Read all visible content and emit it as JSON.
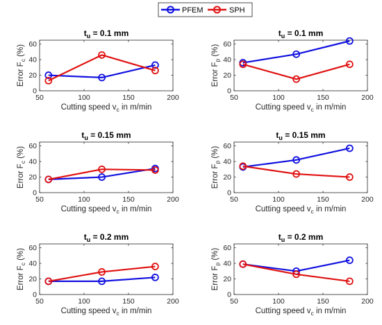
{
  "figure": {
    "legend": [
      {
        "name": "PFEM",
        "color": "#1010e0"
      },
      {
        "name": "SPH",
        "color": "#e01010"
      }
    ]
  },
  "chart_data": [
    {
      "type": "line",
      "title_main": "t",
      "title_sub": "u",
      "title_rest": " = 0.1 mm",
      "xlabel_main": "Cutting speed v",
      "xlabel_sub": "c",
      "xlabel_rest": " in m/min",
      "ylabel_main": "Error F",
      "ylabel_sub": "c",
      "ylabel_rest": " (%)",
      "xlim": [
        50,
        200
      ],
      "ylim": [
        0,
        65
      ],
      "xticks": [
        50,
        100,
        150,
        200
      ],
      "yticks": [
        0,
        20,
        40,
        60
      ],
      "x": [
        60,
        120,
        180
      ],
      "series": [
        {
          "name": "PFEM",
          "color": "#1010e0",
          "values": [
            20,
            17,
            33
          ]
        },
        {
          "name": "SPH",
          "color": "#e01010",
          "values": [
            13,
            46,
            26
          ]
        }
      ]
    },
    {
      "type": "line",
      "title_main": "t",
      "title_sub": "u",
      "title_rest": " = 0.1 mm",
      "xlabel_main": "Cutting speed v",
      "xlabel_sub": "c",
      "xlabel_rest": " in m/min",
      "ylabel_main": "Error F",
      "ylabel_sub": "p",
      "ylabel_rest": " (%)",
      "xlim": [
        50,
        200
      ],
      "ylim": [
        0,
        65
      ],
      "xticks": [
        50,
        100,
        150,
        200
      ],
      "yticks": [
        0,
        20,
        40,
        60
      ],
      "x": [
        60,
        120,
        180
      ],
      "series": [
        {
          "name": "PFEM",
          "color": "#1010e0",
          "values": [
            36,
            47,
            64
          ]
        },
        {
          "name": "SPH",
          "color": "#e01010",
          "values": [
            34,
            15,
            34
          ]
        }
      ]
    },
    {
      "type": "line",
      "title_main": "t",
      "title_sub": "u",
      "title_rest": " = 0.15 mm",
      "xlabel_main": "Cutting speed v",
      "xlabel_sub": "c",
      "xlabel_rest": " in m/min",
      "ylabel_main": "Error F",
      "ylabel_sub": "c",
      "ylabel_rest": " (%)",
      "xlim": [
        50,
        200
      ],
      "ylim": [
        0,
        65
      ],
      "xticks": [
        50,
        100,
        150,
        200
      ],
      "yticks": [
        0,
        20,
        40,
        60
      ],
      "x": [
        60,
        120,
        180
      ],
      "series": [
        {
          "name": "PFEM",
          "color": "#1010e0",
          "values": [
            17,
            20,
            31
          ]
        },
        {
          "name": "SPH",
          "color": "#e01010",
          "values": [
            17,
            30,
            29
          ]
        }
      ]
    },
    {
      "type": "line",
      "title_main": "t",
      "title_sub": "u",
      "title_rest": " = 0.15 mm",
      "xlabel_main": "Cutting speed v",
      "xlabel_sub": "c",
      "xlabel_rest": " in m/min",
      "ylabel_main": "Error F",
      "ylabel_sub": "p",
      "ylabel_rest": " (%)",
      "xlim": [
        50,
        200
      ],
      "ylim": [
        0,
        65
      ],
      "xticks": [
        50,
        100,
        150,
        200
      ],
      "yticks": [
        0,
        20,
        40,
        60
      ],
      "x": [
        60,
        120,
        180
      ],
      "series": [
        {
          "name": "PFEM",
          "color": "#1010e0",
          "values": [
            33,
            42,
            57
          ]
        },
        {
          "name": "SPH",
          "color": "#e01010",
          "values": [
            34,
            24,
            20
          ]
        }
      ]
    },
    {
      "type": "line",
      "title_main": "t",
      "title_sub": "u",
      "title_rest": " = 0.2 mm",
      "xlabel_main": "Cutting speed v",
      "xlabel_sub": "c",
      "xlabel_rest": " in m/min",
      "ylabel_main": "Error F",
      "ylabel_sub": "c",
      "ylabel_rest": " (%)",
      "xlim": [
        50,
        200
      ],
      "ylim": [
        0,
        65
      ],
      "xticks": [
        50,
        100,
        150,
        200
      ],
      "yticks": [
        0,
        20,
        40,
        60
      ],
      "x": [
        60,
        120,
        180
      ],
      "series": [
        {
          "name": "PFEM",
          "color": "#1010e0",
          "values": [
            17,
            17,
            22
          ]
        },
        {
          "name": "SPH",
          "color": "#e01010",
          "values": [
            17,
            29,
            36
          ]
        }
      ]
    },
    {
      "type": "line",
      "title_main": "t",
      "title_sub": "u",
      "title_rest": " = 0.2 mm",
      "xlabel_main": "Cutting speed v",
      "xlabel_sub": "c",
      "xlabel_rest": " in m/min",
      "ylabel_main": "Error F",
      "ylabel_sub": "p",
      "ylabel_rest": " (%)",
      "xlim": [
        50,
        200
      ],
      "ylim": [
        0,
        65
      ],
      "xticks": [
        50,
        100,
        150,
        200
      ],
      "yticks": [
        0,
        20,
        40,
        60
      ],
      "x": [
        60,
        120,
        180
      ],
      "series": [
        {
          "name": "PFEM",
          "color": "#1010e0",
          "values": [
            39,
            30,
            44
          ]
        },
        {
          "name": "SPH",
          "color": "#e01010",
          "values": [
            39,
            26,
            17
          ]
        }
      ]
    }
  ]
}
